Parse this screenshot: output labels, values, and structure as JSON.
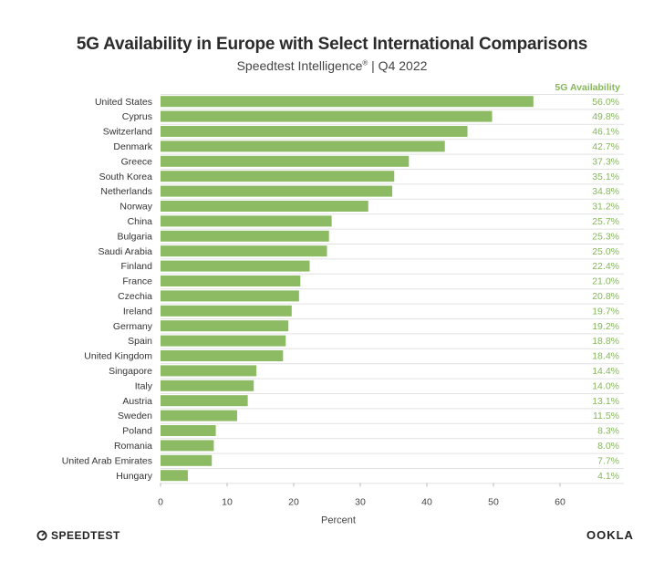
{
  "header": {
    "title": "5G Availability in Europe with Select International Comparisons",
    "subtitle_main": "Speedtest Intelligence",
    "subtitle_reg": "®",
    "subtitle_tail": " | Q4 2022"
  },
  "chart_data": {
    "type": "bar",
    "orientation": "horizontal",
    "categories": [
      "United States",
      "Cyprus",
      "Switzerland",
      "Denmark",
      "Greece",
      "South Korea",
      "Netherlands",
      "Norway",
      "China",
      "Bulgaria",
      "Saudi Arabia",
      "Finland",
      "France",
      "Czechia",
      "Ireland",
      "Germany",
      "Spain",
      "United Kingdom",
      "Singapore",
      "Italy",
      "Austria",
      "Sweden",
      "Poland",
      "Romania",
      "United Arab Emirates",
      "Hungary"
    ],
    "values": [
      56.0,
      49.8,
      46.1,
      42.7,
      37.3,
      35.1,
      34.8,
      31.2,
      25.7,
      25.3,
      25.0,
      22.4,
      21.0,
      20.8,
      19.7,
      19.2,
      18.8,
      18.4,
      14.4,
      14.0,
      13.1,
      11.5,
      8.3,
      8.0,
      7.7,
      4.1
    ],
    "value_labels": [
      "56.0%",
      "49.8%",
      "46.1%",
      "42.7%",
      "37.3%",
      "35.1%",
      "34.8%",
      "31.2%",
      "25.7%",
      "25.3%",
      "25.0%",
      "22.4%",
      "21.0%",
      "20.8%",
      "19.7%",
      "19.2%",
      "18.8%",
      "18.4%",
      "14.4%",
      "14.0%",
      "13.1%",
      "11.5%",
      "8.3%",
      "8.0%",
      "7.7%",
      "4.1%"
    ],
    "value_column_header": "5G Availability",
    "xlabel": "Percent",
    "xlim": [
      0,
      60
    ],
    "xticks": [
      0,
      10,
      20,
      30,
      40,
      50,
      60
    ],
    "grid": "horizontal",
    "bar_color": "#8cbb64",
    "label_color": "#86b75c"
  },
  "footer": {
    "left_logo": "SPEEDTEST",
    "right_logo": "OOKLA"
  }
}
